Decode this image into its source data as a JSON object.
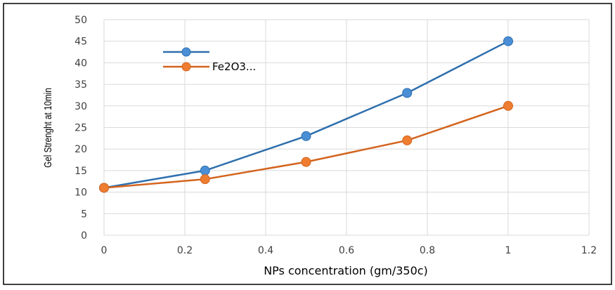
{
  "chart_data": {
    "type": "line",
    "title": "",
    "xlabel": "NPs concentration (gm/350c)",
    "ylabel": "Gel Strenght at 10min",
    "xlim": [
      0,
      1.2
    ],
    "ylim": [
      0,
      50
    ],
    "x_ticks": [
      "0",
      "0.2",
      "0.4",
      "0.6",
      "0.8",
      "1",
      "1.2"
    ],
    "y_ticks": [
      "0",
      "5",
      "10",
      "15",
      "20",
      "25",
      "30",
      "35",
      "40",
      "45",
      "50"
    ],
    "grid": "vertical and horizontal",
    "legend_position": "top-left",
    "series": [
      {
        "name": "",
        "color": "#2e6fad",
        "marker_color": "#4a8fd6",
        "x": [
          0,
          0.25,
          0.5,
          0.75,
          1
        ],
        "y": [
          11,
          15,
          23,
          33,
          45
        ]
      },
      {
        "name": "Fe2O3...",
        "color": "#d3641e",
        "marker_color": "#ee7d31",
        "x": [
          0,
          0.25,
          0.5,
          0.75,
          1
        ],
        "y": [
          11,
          13,
          17,
          22,
          30
        ]
      }
    ]
  }
}
